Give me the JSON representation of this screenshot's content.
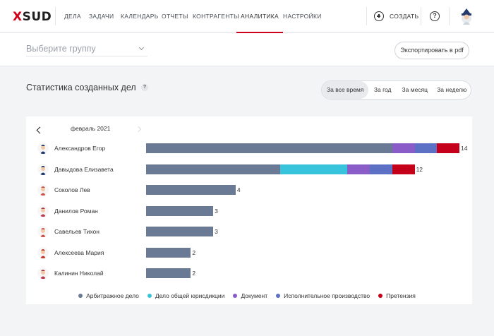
{
  "app": {
    "logo_x": "X",
    "logo_rest": "SUD"
  },
  "nav": {
    "items": [
      {
        "label": "ДЕЛА",
        "active": false
      },
      {
        "label": "ЗАДАЧИ",
        "active": false
      },
      {
        "label": "КАЛЕНДАРЬ",
        "active": false
      },
      {
        "label": "ОТЧЕТЫ",
        "active": false
      },
      {
        "label": "КОНТРАГЕНТЫ",
        "active": false
      },
      {
        "label": "АНАЛИТИКА",
        "active": true
      },
      {
        "label": "НАСТРОЙКИ",
        "active": false
      }
    ],
    "create_label": "СОЗДАТЬ",
    "help_label": "?"
  },
  "filter": {
    "group_placeholder": "Выберите группу",
    "export_label": "Экспортировать в pdf"
  },
  "section": {
    "title": "Статистика созданных дел",
    "help": "?"
  },
  "period_tabs": [
    {
      "label": "За все время",
      "active": true
    },
    {
      "label": "За год",
      "active": false
    },
    {
      "label": "За месяц",
      "active": false
    },
    {
      "label": "За неделю",
      "active": false
    }
  ],
  "month": {
    "label": "февраль 2021"
  },
  "colors": {
    "arb": "#6b7a94",
    "general": "#38c3dc",
    "document": "#8a5cc8",
    "enforcement": "#5c71c4",
    "claim": "#c4001b"
  },
  "chart_data": {
    "type": "bar",
    "orientation": "horizontal",
    "stacked": true,
    "categories": [
      "Александров Егор",
      "Давыдова Елизавета",
      "Соколов Лев",
      "Данилов Роман",
      "Савельев Тихон",
      "Алексеева Мария",
      "Калинин Николай"
    ],
    "series": [
      {
        "name": "Арбитражное дело",
        "color": "#6b7a94",
        "values": [
          11,
          6,
          4,
          3,
          3,
          2,
          2
        ]
      },
      {
        "name": "Дело общей юрисдикции",
        "color": "#38c3dc",
        "values": [
          0,
          3,
          0,
          0,
          0,
          0,
          0
        ]
      },
      {
        "name": "Документ",
        "color": "#8a5cc8",
        "values": [
          1,
          1,
          0,
          0,
          0,
          0,
          0
        ]
      },
      {
        "name": "Исполнительное производство",
        "color": "#5c71c4",
        "values": [
          1,
          1,
          0,
          0,
          0,
          0,
          0
        ]
      },
      {
        "name": "Претензия",
        "color": "#c4001b",
        "values": [
          1,
          1,
          0,
          0,
          0,
          0,
          0
        ]
      }
    ],
    "totals": [
      14,
      12,
      4,
      3,
      3,
      2,
      2
    ],
    "legend_position": "bottom",
    "grid": false
  }
}
